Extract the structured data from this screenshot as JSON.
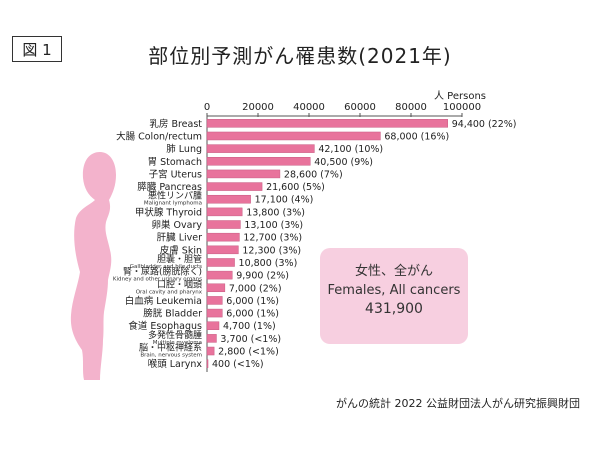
{
  "figure_label": "図 1",
  "colors": {
    "bar": "#e8739c",
    "bar_stroke": "#c75b82",
    "silhouette": "#f3b3cc",
    "panel": "#f7cfe0"
  },
  "summary_panel": {
    "line1": "女性、全がん",
    "line2": "Females, All cancers",
    "line3": "431,900"
  },
  "source_note": "がんの統計 2022 公益財団法人がん研究振興財団",
  "silhouette_name": "female-silhouette-icon",
  "chart_data": {
    "type": "bar",
    "orientation": "horizontal",
    "title": "部位別予測がん罹患数(2021年)",
    "xlabel": "人 Persons",
    "xlim": [
      0,
      100000
    ],
    "xticks": [
      0,
      20000,
      40000,
      60000,
      80000,
      100000
    ],
    "xtick_labels": [
      "0",
      "20000",
      "40000",
      "60000",
      "80000",
      "100000"
    ],
    "categories": [
      {
        "label": "乳房 Breast",
        "sub": ""
      },
      {
        "label": "大腸 Colon/rectum",
        "sub": ""
      },
      {
        "label": "肺 Lung",
        "sub": ""
      },
      {
        "label": "胃 Stomach",
        "sub": ""
      },
      {
        "label": "子宮 Uterus",
        "sub": ""
      },
      {
        "label": "膵臓 Pancreas",
        "sub": ""
      },
      {
        "label": "悪性リンパ腫",
        "sub": "Malignant lymphoma"
      },
      {
        "label": "甲状腺 Thyroid",
        "sub": ""
      },
      {
        "label": "卵巣 Ovary",
        "sub": ""
      },
      {
        "label": "肝臓 Liver",
        "sub": ""
      },
      {
        "label": "皮膚 Skin",
        "sub": ""
      },
      {
        "label": "胆嚢・胆管",
        "sub": "Gallbladder and bile ducts"
      },
      {
        "label": "腎・尿路(膀胱除く)",
        "sub": "Kidney and other urinary organs"
      },
      {
        "label": "口腔・咽頭",
        "sub": "Oral cavity and pharynx"
      },
      {
        "label": "白血病 Leukemia",
        "sub": ""
      },
      {
        "label": "膀胱 Bladder",
        "sub": ""
      },
      {
        "label": "食道 Esophagus",
        "sub": ""
      },
      {
        "label": "多発性骨髄腫",
        "sub": "Multiple myeloma"
      },
      {
        "label": "脳・中枢神経系",
        "sub": "Brain, nervous system"
      },
      {
        "label": "喉頭 Larynx",
        "sub": ""
      }
    ],
    "values": [
      94400,
      68000,
      42100,
      40500,
      28600,
      21600,
      17100,
      13800,
      13100,
      12700,
      12300,
      10800,
      9900,
      7000,
      6000,
      6000,
      4700,
      3700,
      2800,
      400
    ],
    "data_labels": [
      "94,400 (22%)",
      "68,000 (16%)",
      "42,100 (10%)",
      "40,500 (9%)",
      "28,600 (7%)",
      "21,600 (5%)",
      "17,100 (4%)",
      "13,800 (3%)",
      "13,100 (3%)",
      "12,700 (3%)",
      "12,300 (3%)",
      "10,800 (3%)",
      "9,900 (2%)",
      "7,000 (2%)",
      "6,000 (1%)",
      "6,000 (1%)",
      "4,700 (1%)",
      "3,700 (<1%)",
      "2,800 (<1%)",
      "400 (<1%)"
    ]
  }
}
